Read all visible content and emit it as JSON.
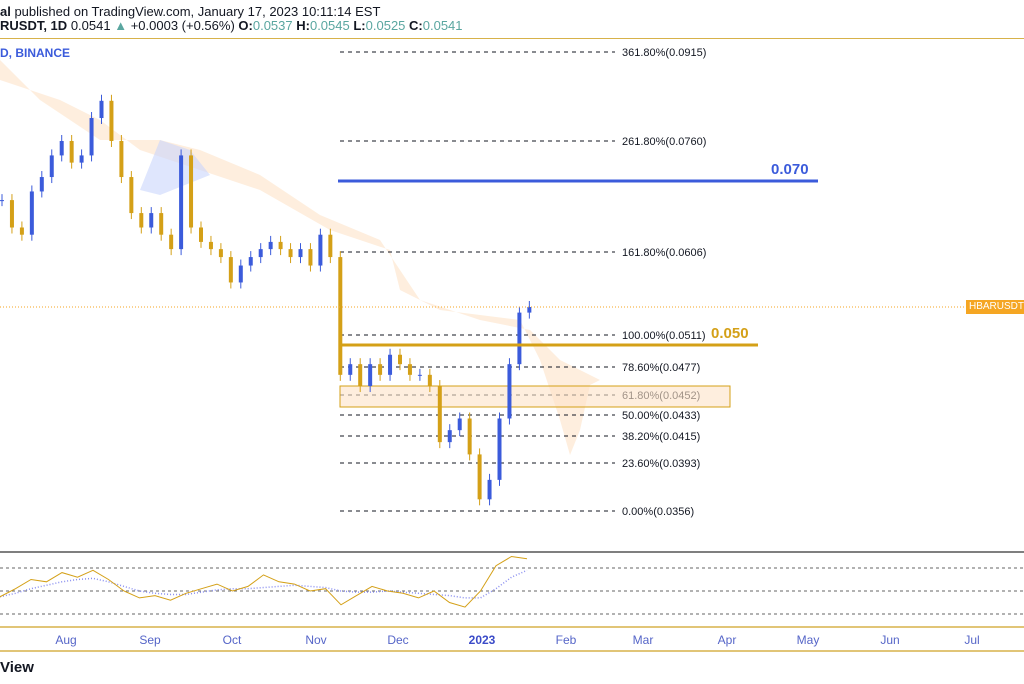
{
  "header": {
    "author_suffix": "al",
    "published": " published on TradingView.com, January 17, 2023 10:11:14 EST",
    "symbol": "RUSDT, 1D",
    "last": "0.0541",
    "change": "+0.0003 (+0.56%)",
    "o_label": "O:",
    "o": "0.0537",
    "h_label": "H:",
    "h": "0.0545",
    "l_label": "L:",
    "l": "0.0525",
    "c_label": "C:",
    "c": "0.0541",
    "exchange": "D, BINANCE"
  },
  "price_tag": "HBARUSDT",
  "footer": "View",
  "colors": {
    "up": "#3b5bdb",
    "down": "#d4a017",
    "fib_box": "#f5a623",
    "level_070": "#3b5bdb",
    "level_050": "#d4a017",
    "rsi": "#d4a017",
    "rsi_ma": "#8a8ff0"
  },
  "chart_data": {
    "type": "candlestick",
    "price_axis_anchors": [
      {
        "p": 0.0915,
        "label": "361.80%(0.0915)"
      },
      {
        "p": 0.076,
        "label": "261.80%(0.0760)"
      },
      {
        "p": 0.0606,
        "label": "161.80%(0.0606)"
      },
      {
        "p": 0.0541,
        "label": ""
      },
      {
        "p": 0.0511,
        "label": "100.00%(0.0511)"
      },
      {
        "p": 0.0477,
        "label": "78.60%(0.0477)"
      },
      {
        "p": 0.0452,
        "label": "61.80%(0.0452)"
      },
      {
        "p": 0.0433,
        "label": "50.00%(0.0433)"
      },
      {
        "p": 0.0415,
        "label": "38.20%(0.0415)"
      },
      {
        "p": 0.0393,
        "label": "23.60%(0.0393)"
      },
      {
        "p": 0.0356,
        "label": "0.00%(0.0356)"
      }
    ],
    "levels": [
      {
        "label": "0.070",
        "p": 0.07
      },
      {
        "label": "0.050",
        "p": 0.0505
      }
    ],
    "current_price": 0.0541,
    "closes": [
      0.0678,
      0.064,
      0.063,
      0.069,
      0.071,
      0.074,
      0.076,
      0.073,
      0.074,
      0.08,
      0.083,
      0.076,
      0.071,
      0.066,
      0.064,
      0.066,
      0.063,
      0.061,
      0.074,
      0.064,
      0.062,
      0.061,
      0.06,
      0.057,
      0.059,
      0.06,
      0.061,
      0.062,
      0.061,
      0.06,
      0.061,
      0.059,
      0.063,
      0.06,
      0.047,
      0.048,
      0.046,
      0.048,
      0.047,
      0.049,
      0.048,
      0.047,
      0.047,
      0.046,
      0.041,
      0.042,
      0.043,
      0.04,
      0.0365,
      0.038,
      0.043,
      0.048,
      0.0535,
      0.0541
    ],
    "rsi": [
      45,
      52,
      60,
      58,
      66,
      62,
      68,
      60,
      50,
      44,
      46,
      42,
      48,
      52,
      56,
      50,
      54,
      64,
      58,
      56,
      50,
      52,
      38,
      46,
      54,
      50,
      48,
      44,
      50,
      40,
      36,
      50,
      72,
      80,
      78
    ],
    "rsi_ma": [
      45,
      48,
      52,
      55,
      58,
      60,
      61,
      58,
      54,
      50,
      48,
      47,
      47,
      49,
      51,
      52,
      52,
      53,
      54,
      55,
      54,
      53,
      50,
      49,
      49,
      50,
      49,
      48,
      47,
      46,
      44,
      44,
      52,
      62,
      68
    ],
    "rsi_levels": [
      70,
      50,
      30
    ],
    "x_ticks": [
      "Aug",
      "Sep",
      "Oct",
      "Nov",
      "Dec",
      "2023",
      "Feb",
      "Mar",
      "Apr",
      "May",
      "Jun",
      "Jul"
    ]
  }
}
